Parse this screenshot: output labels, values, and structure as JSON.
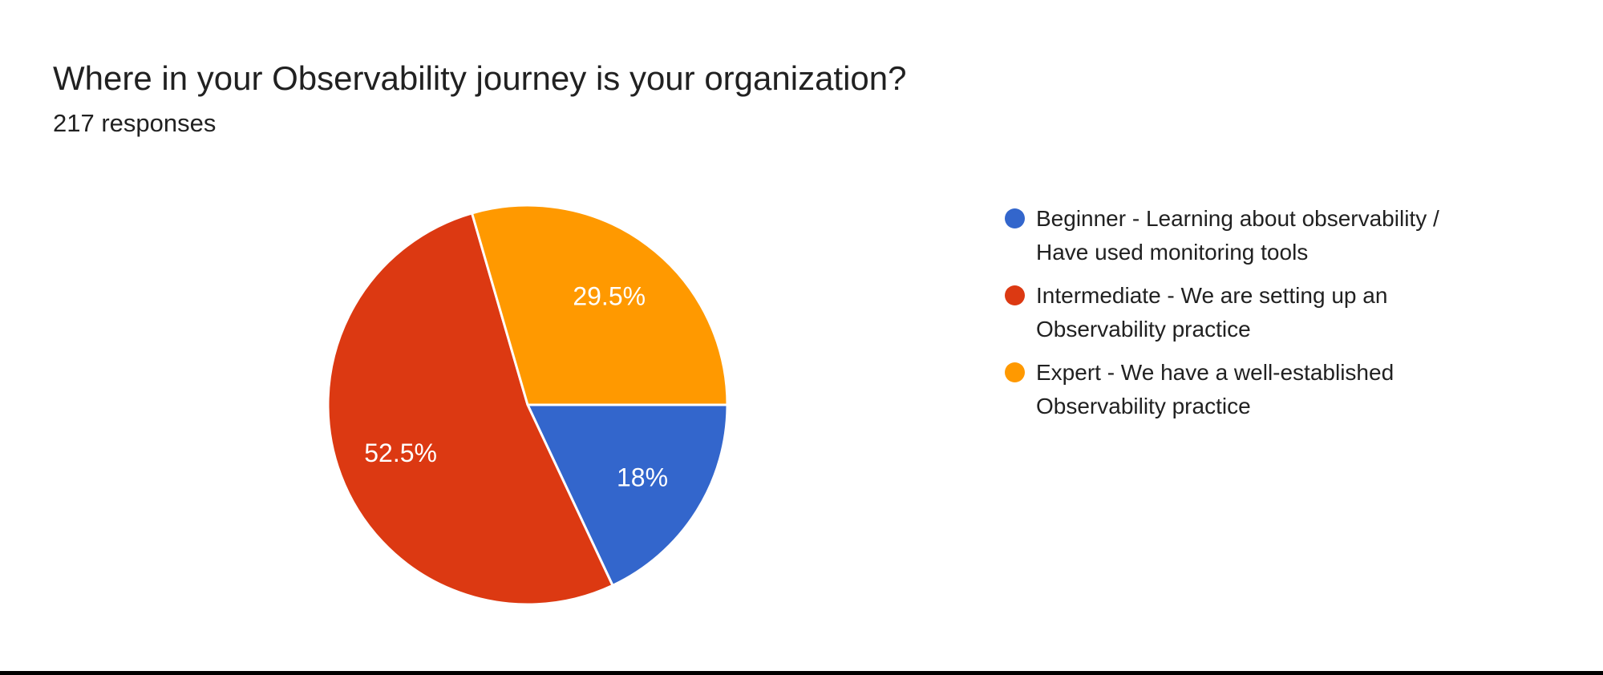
{
  "header": {
    "title": "Where in your Observability journey is your organization?",
    "subtitle": "217 responses"
  },
  "chart_data": {
    "type": "pie",
    "title": "Where in your Observability journey is your organization?",
    "subtitle": "217 responses",
    "total_responses": 217,
    "legend_position": "right",
    "start_angle_deg_clockwise_from_north": 90,
    "direction": "clockwise",
    "label_radius_ratio": 0.68,
    "slice_border_color": "#ffffff",
    "slice_border_width": 3,
    "slices": [
      {
        "name": "Beginner - Learning about observability / Have used monitoring tools",
        "value_pct": 18,
        "display": "18%",
        "color": "#3366CC"
      },
      {
        "name": "Intermediate - We are setting up an Observability practice",
        "value_pct": 52.5,
        "display": "52.5%",
        "color": "#DC3912"
      },
      {
        "name": "Expert - We have a well-established Observability practice",
        "value_pct": 29.5,
        "display": "29.5%",
        "color": "#FF9900"
      }
    ]
  },
  "legend": {
    "items": [
      {
        "label": "Beginner - Learning about observability /\nHave used monitoring tools",
        "color": "#3366CC"
      },
      {
        "label": "Intermediate - We are setting up an\nObservability practice",
        "color": "#DC3912"
      },
      {
        "label": "Expert - We have a well-established\nObservability practice",
        "color": "#FF9900"
      }
    ]
  },
  "colors": {
    "text": "#212121",
    "background": "#ffffff",
    "bottom_bar": "#000000"
  }
}
